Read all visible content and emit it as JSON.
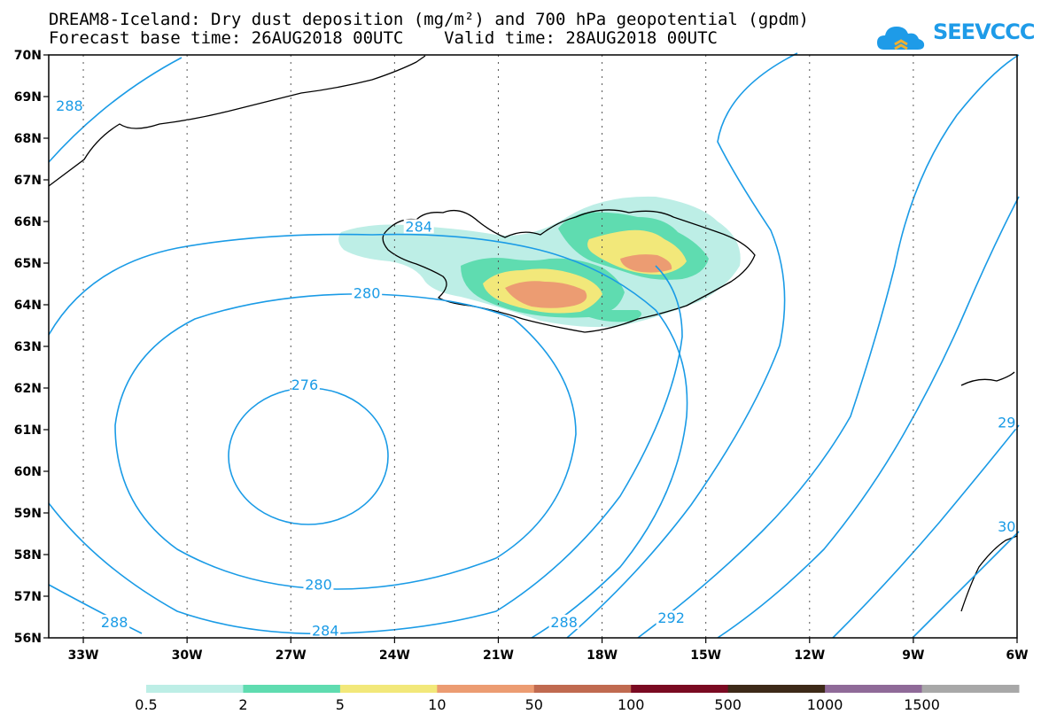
{
  "title": {
    "line1": "DREAM8-Iceland: Dry dust deposition (mg/m²) and 700 hPa geopotential (gpdm)",
    "line2": "Forecast base time: 26AUG2018 00UTC    Valid time: 28AUG2018 00UTC"
  },
  "logo": {
    "text": "SEEVCCC",
    "color": "#1e9be8"
  },
  "map": {
    "lon_range": [
      -34,
      -6
    ],
    "lat_range": [
      56,
      70
    ],
    "lon_ticks": [
      {
        "value": -33,
        "label": "33W"
      },
      {
        "value": -30,
        "label": "30W"
      },
      {
        "value": -27,
        "label": "27W"
      },
      {
        "value": -24,
        "label": "24W"
      },
      {
        "value": -21,
        "label": "21W"
      },
      {
        "value": -18,
        "label": "18W"
      },
      {
        "value": -15,
        "label": "15W"
      },
      {
        "value": -12,
        "label": "12W"
      },
      {
        "value": -9,
        "label": "9W"
      },
      {
        "value": -6,
        "label": "6W"
      }
    ],
    "lat_ticks": [
      {
        "value": 70,
        "label": "70N"
      },
      {
        "value": 69,
        "label": "69N"
      },
      {
        "value": 68,
        "label": "68N"
      },
      {
        "value": 67,
        "label": "67N"
      },
      {
        "value": 66,
        "label": "66N"
      },
      {
        "value": 65,
        "label": "65N"
      },
      {
        "value": 64,
        "label": "64N"
      },
      {
        "value": 63,
        "label": "63N"
      },
      {
        "value": 62,
        "label": "62N"
      },
      {
        "value": 61,
        "label": "61N"
      },
      {
        "value": 60,
        "label": "60N"
      },
      {
        "value": 59,
        "label": "59N"
      },
      {
        "value": 58,
        "label": "58N"
      },
      {
        "value": 57,
        "label": "57N"
      },
      {
        "value": 56,
        "label": "56N"
      }
    ],
    "contour_color": "#1a9be6",
    "contour_labels": [
      {
        "text": "288",
        "lon": -33.4,
        "lat": 68.7
      },
      {
        "text": "284",
        "lon": -23.3,
        "lat": 65.8
      },
      {
        "text": "280",
        "lon": -24.8,
        "lat": 64.2
      },
      {
        "text": "276",
        "lon": -26.6,
        "lat": 62.0
      },
      {
        "text": "280",
        "lon": -26.2,
        "lat": 57.2
      },
      {
        "text": "284",
        "lon": -26.0,
        "lat": 56.1
      },
      {
        "text": "288",
        "lon": -32.1,
        "lat": 56.3
      },
      {
        "text": "288",
        "lon": -19.1,
        "lat": 56.3
      },
      {
        "text": "292",
        "lon": -16.0,
        "lat": 56.4
      },
      {
        "text": "29",
        "lon": -6.3,
        "lat": 61.1
      },
      {
        "text": "30",
        "lon": -6.3,
        "lat": 58.6
      }
    ]
  },
  "legend": {
    "colors": [
      "#bdeee6",
      "#5fdcb0",
      "#f2e87a",
      "#ec9c72",
      "#c06a50",
      "#7a0a22",
      "#3d2a18",
      "#8f6a98",
      "#a8a8a8"
    ],
    "labels": [
      "0.5",
      "2",
      "5",
      "10",
      "50",
      "100",
      "500",
      "1000",
      "1500"
    ]
  }
}
